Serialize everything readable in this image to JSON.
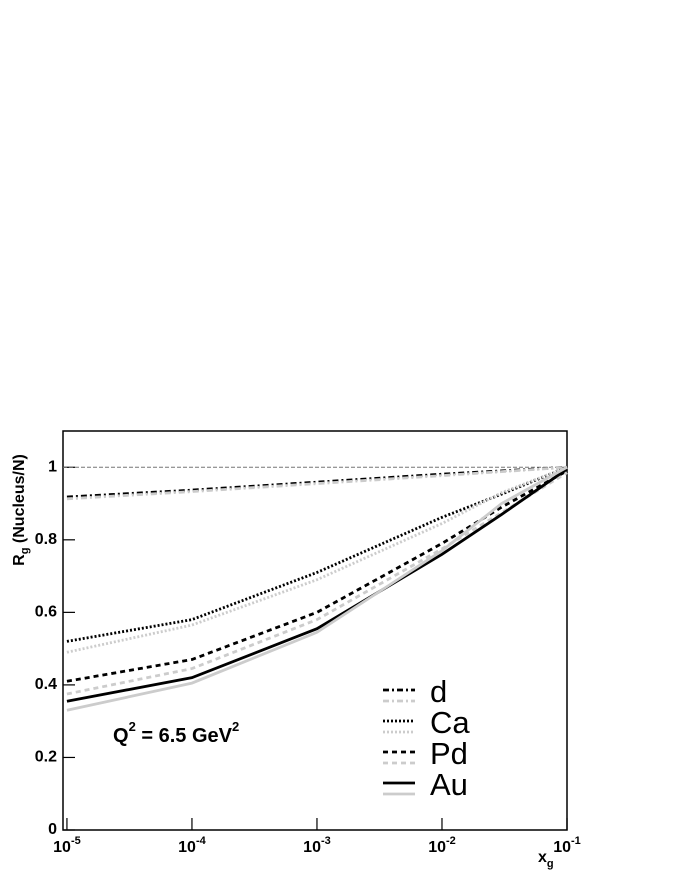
{
  "chart_data": {
    "type": "line",
    "y_label": {
      "main": "R",
      "sub": "g",
      "rest": " (Nucleus/N)"
    },
    "x_label": {
      "main": "x",
      "sub": "g"
    },
    "annotation": {
      "q": "Q",
      "q_exp": "2",
      "text": " = 6.5 GeV",
      "unit_exp": "2"
    },
    "x": [
      1e-05,
      0.0001,
      0.001,
      0.01,
      0.03,
      0.1
    ],
    "xlim": [
      9.3e-06,
      0.1
    ],
    "xscale": "log",
    "xticks": [
      {
        "value": 1e-05,
        "label": "10",
        "exponent": "-5"
      },
      {
        "value": 0.0001,
        "label": "10",
        "exponent": "-4"
      },
      {
        "value": 0.001,
        "label": "10",
        "exponent": "-3"
      },
      {
        "value": 0.01,
        "label": "10",
        "exponent": "-2"
      },
      {
        "value": 0.1,
        "label": "10",
        "exponent": "-1"
      }
    ],
    "ylim": [
      0,
      1.1
    ],
    "yticks": [
      0,
      0.2,
      0.4,
      0.6,
      0.8,
      1
    ],
    "reference_line": 1,
    "legend": "lower right",
    "series": [
      {
        "name": "d",
        "color": "#000000",
        "dash": "6,3,2,3",
        "values": [
          0.918,
          0.937,
          0.959,
          0.981,
          0.99,
          1
        ]
      },
      {
        "color": "#cccccc",
        "dash": "6,3,2,3",
        "values": [
          0.913,
          0.933,
          0.955,
          0.977,
          0.988,
          1
        ]
      },
      {
        "name": "Ca",
        "color": "#000000",
        "dash": "2,2",
        "values": [
          0.52,
          0.58,
          0.71,
          0.862,
          0.926,
          1
        ]
      },
      {
        "color": "#cccccc",
        "dash": "2,2",
        "values": [
          0.49,
          0.565,
          0.69,
          0.845,
          0.93,
          1
        ]
      },
      {
        "name": "Pd",
        "color": "#000000",
        "dash": "5,4",
        "values": [
          0.41,
          0.47,
          0.6,
          0.79,
          0.89,
          0.99
        ]
      },
      {
        "color": "#cccccc",
        "dash": "5,4",
        "values": [
          0.375,
          0.445,
          0.58,
          0.775,
          0.875,
          0.985
        ]
      },
      {
        "name": "Au",
        "color": "#000000",
        "dash": "none",
        "values": [
          0.355,
          0.42,
          0.555,
          0.76,
          0.87,
          0.995
        ]
      },
      {
        "color": "#cccccc",
        "dash": "none",
        "values": [
          0.33,
          0.405,
          0.545,
          0.77,
          0.9,
          1
        ]
      }
    ]
  }
}
